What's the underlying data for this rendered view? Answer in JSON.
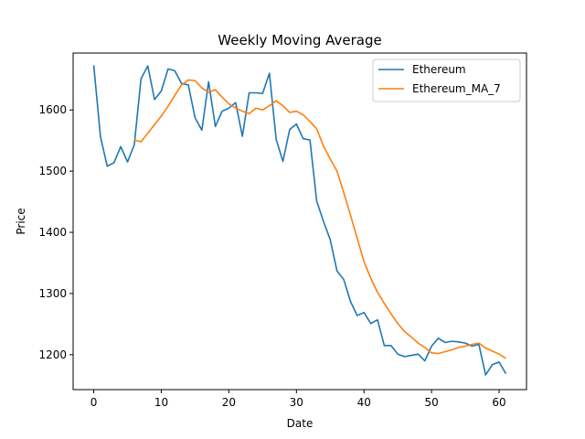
{
  "chart_data": {
    "type": "line",
    "title": "Weekly Moving Average",
    "xlabel": "Date",
    "ylabel": "Price",
    "xlim": [
      -3.05,
      64.05
    ],
    "ylim": [
      1143,
      1693
    ],
    "xticks": [
      0,
      10,
      20,
      30,
      40,
      50,
      60
    ],
    "yticks": [
      1200,
      1300,
      1400,
      1500,
      1600
    ],
    "grid": false,
    "legend_position": "top-right",
    "series": [
      {
        "name": "Ethereum",
        "color": "#1f77b4",
        "x": [
          0,
          1,
          2,
          3,
          4,
          5,
          6,
          7,
          8,
          9,
          10,
          11,
          12,
          13,
          14,
          15,
          16,
          17,
          18,
          19,
          20,
          21,
          22,
          23,
          24,
          25,
          26,
          27,
          28,
          29,
          30,
          31,
          32,
          33,
          34,
          35,
          36,
          37,
          38,
          39,
          40,
          41,
          42,
          43,
          44,
          45,
          46,
          47,
          48,
          49,
          50,
          51,
          52,
          53,
          54,
          55,
          56,
          57,
          58,
          59,
          60,
          61
        ],
        "values": [
          1673,
          1556,
          1508,
          1514,
          1540,
          1515,
          1543,
          1651,
          1672,
          1617,
          1631,
          1667,
          1664,
          1643,
          1641,
          1587,
          1567,
          1646,
          1573,
          1598,
          1603,
          1612,
          1557,
          1628,
          1628,
          1627,
          1660,
          1552,
          1516,
          1568,
          1577,
          1553,
          1551,
          1451,
          1418,
          1388,
          1337,
          1323,
          1287,
          1264,
          1269,
          1251,
          1257,
          1215,
          1215,
          1201,
          1197,
          1199,
          1201,
          1190,
          1214,
          1227,
          1220,
          1222,
          1221,
          1219,
          1214,
          1217,
          1167,
          1184,
          1188,
          1169
        ]
      },
      {
        "name": "Ethereum_MA_7",
        "color": "#ff7f0e",
        "x": [
          6,
          7,
          8,
          9,
          10,
          11,
          12,
          13,
          14,
          15,
          16,
          17,
          18,
          19,
          20,
          21,
          22,
          23,
          24,
          25,
          26,
          27,
          28,
          29,
          30,
          31,
          32,
          33,
          34,
          35,
          36,
          37,
          38,
          39,
          40,
          41,
          42,
          43,
          44,
          45,
          46,
          47,
          48,
          49,
          50,
          51,
          52,
          53,
          54,
          55,
          56,
          57,
          58,
          59,
          60,
          61
        ],
        "values": [
          1551,
          1548,
          1562,
          1576,
          1590,
          1606,
          1624,
          1641,
          1649,
          1648,
          1636,
          1629,
          1633,
          1621,
          1610,
          1603,
          1598,
          1594,
          1603,
          1600,
          1607,
          1615,
          1607,
          1596,
          1598,
          1592,
          1581,
          1569,
          1541,
          1520,
          1500,
          1465,
          1428,
          1390,
          1352,
          1325,
          1302,
          1284,
          1267,
          1251,
          1238,
          1229,
          1219,
          1212,
          1203,
          1202,
          1205,
          1208,
          1212,
          1214,
          1217,
          1219,
          1211,
          1206,
          1201,
          1194
        ]
      }
    ]
  }
}
